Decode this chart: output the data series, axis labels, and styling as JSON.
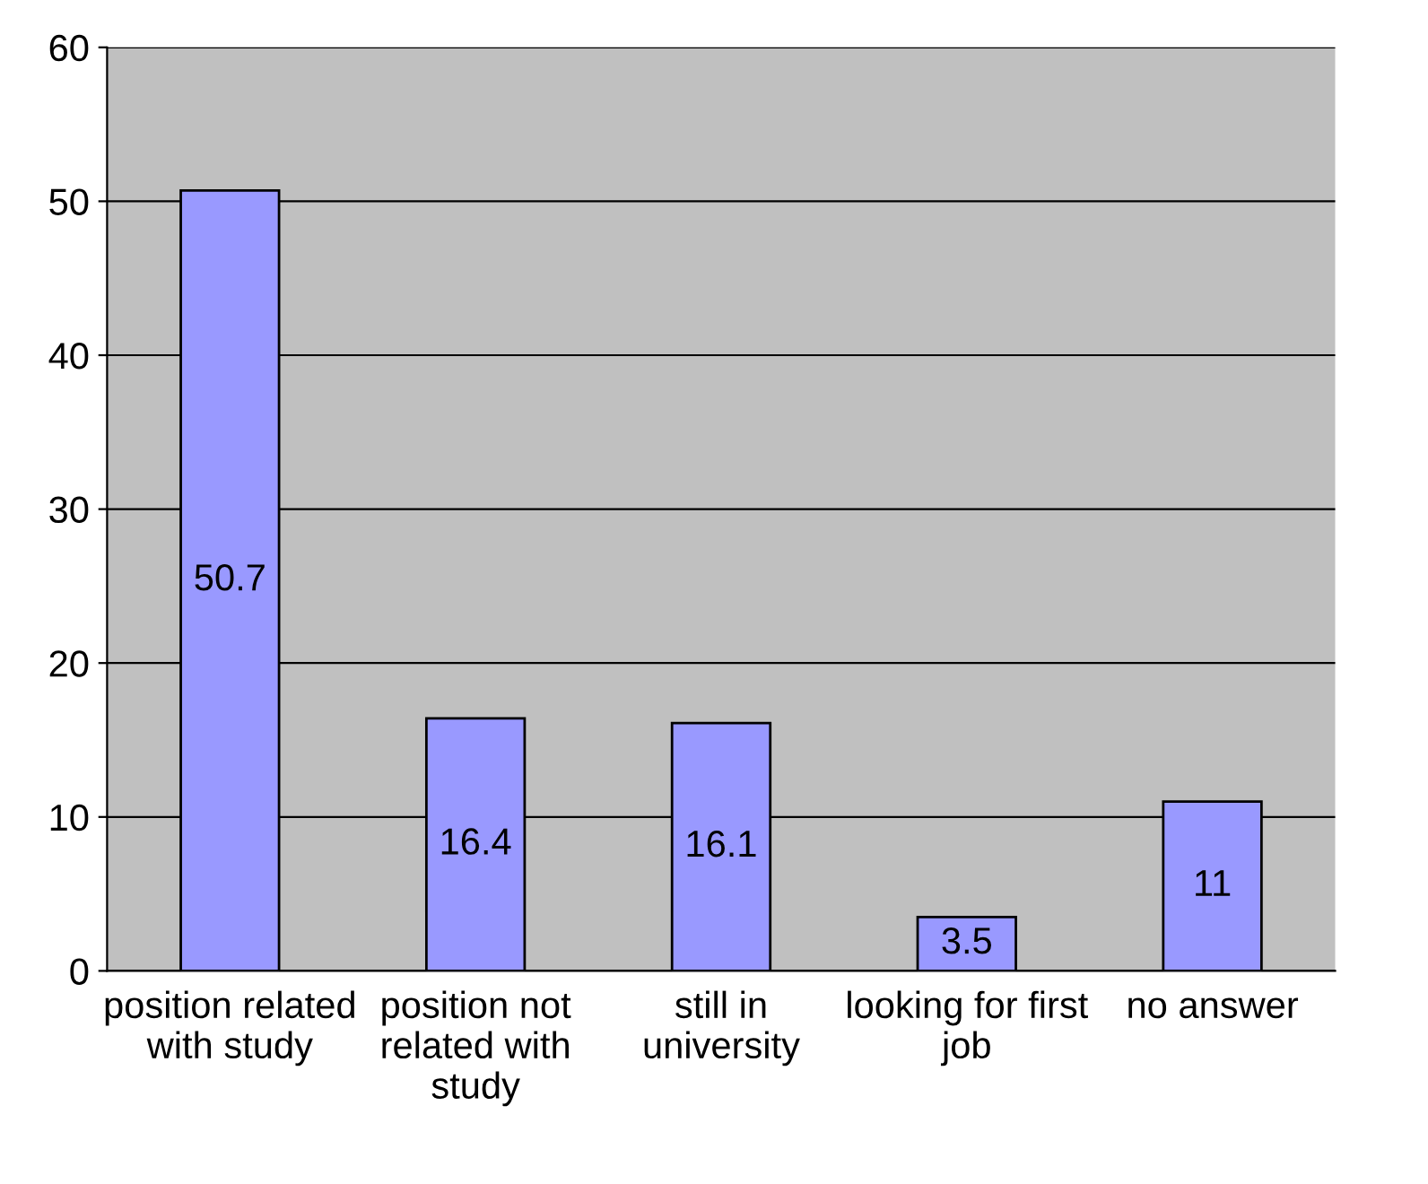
{
  "chart_data": {
    "type": "bar",
    "categories": [
      "position related\nwith study",
      "position not\nrelated with\nstudy",
      "still in\nuniversity",
      "looking for first\njob",
      "no answer"
    ],
    "values": [
      50.7,
      16.4,
      16.1,
      3.5,
      11
    ],
    "color": "#9999ff",
    "ylim": [
      0,
      60
    ],
    "yticks": [
      0,
      10,
      20,
      30,
      40,
      50,
      60
    ],
    "grid": "y",
    "data_labels": true
  }
}
